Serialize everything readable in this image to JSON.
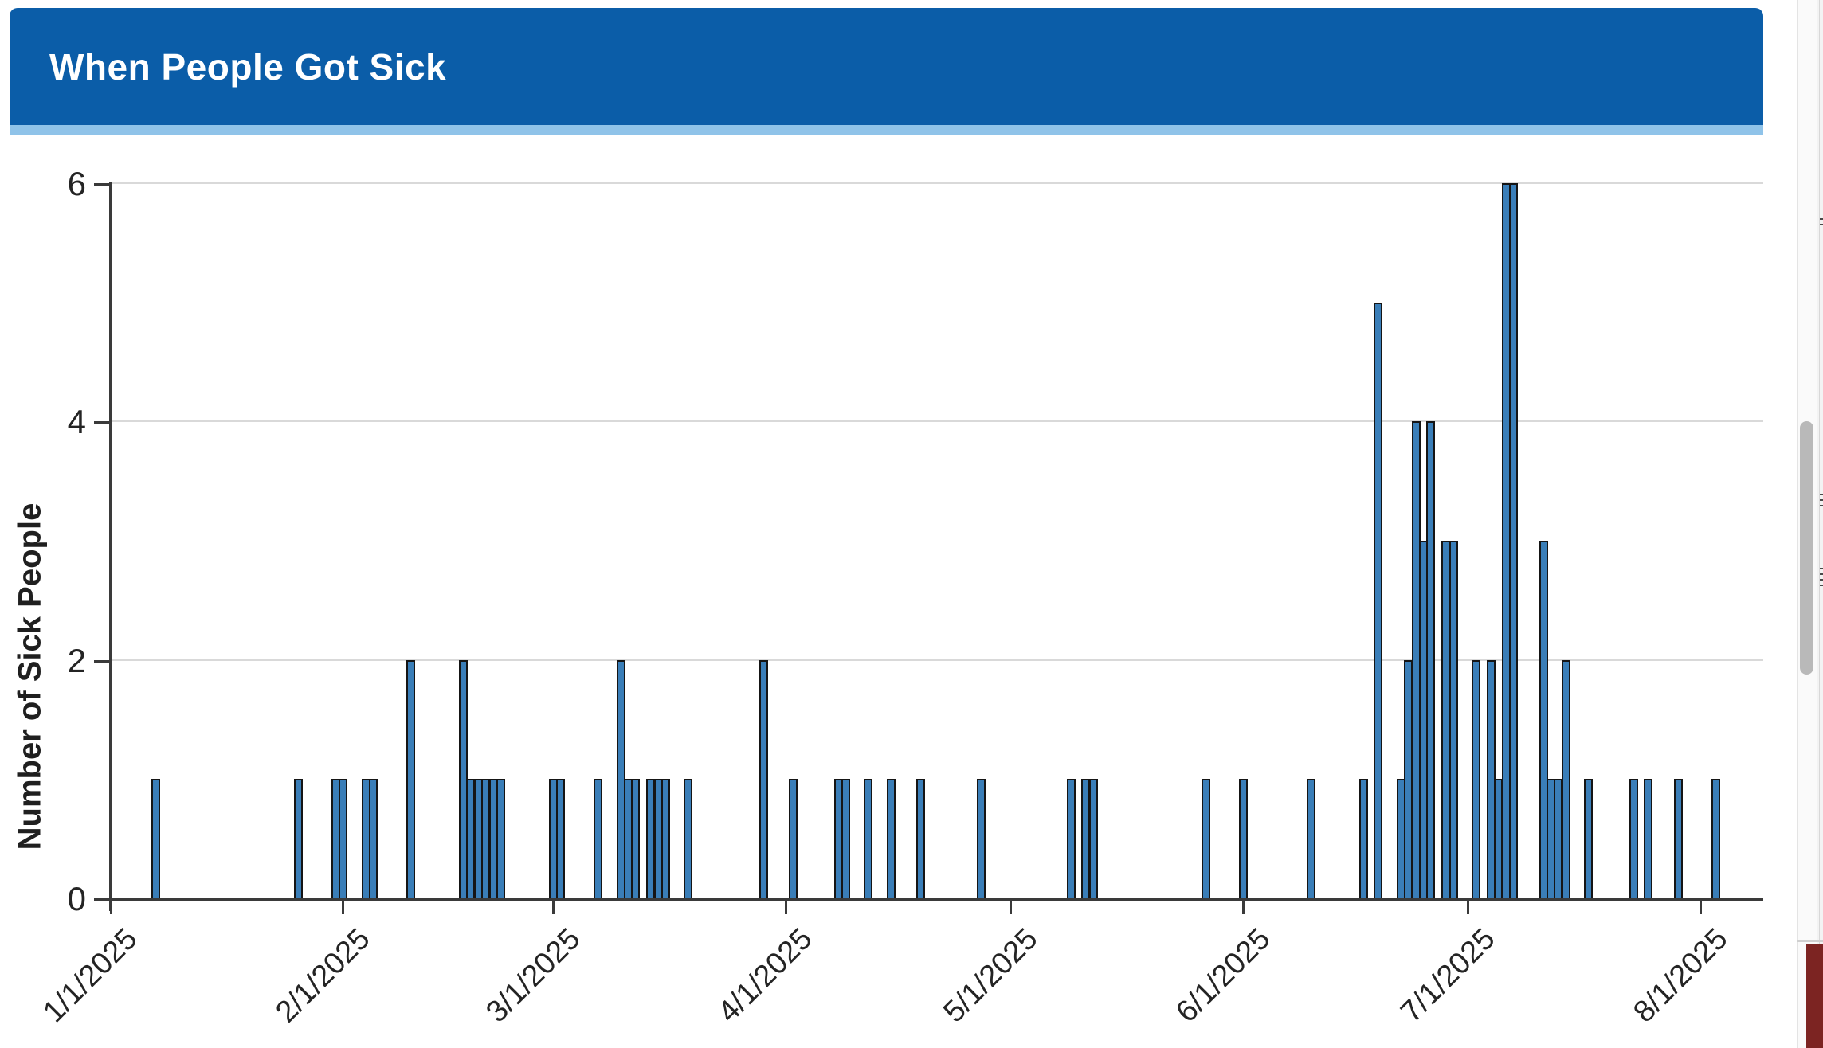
{
  "header": {
    "title": "When People Got Sick"
  },
  "chart_data": {
    "type": "bar",
    "title": "When People Got Sick",
    "xlabel": "",
    "ylabel": "Number of Sick People",
    "ylim": [
      0,
      6
    ],
    "grid": "horizontal",
    "legend": "none",
    "y_ticks": [
      0,
      2,
      4,
      6
    ],
    "y_gridlines": [
      2,
      4,
      6
    ],
    "x_ticks": [
      {
        "label": "1/1/2025",
        "day": 0
      },
      {
        "label": "2/1/2025",
        "day": 31
      },
      {
        "label": "3/1/2025",
        "day": 59
      },
      {
        "label": "4/1/2025",
        "day": 90
      },
      {
        "label": "5/1/2025",
        "day": 120
      },
      {
        "label": "6/1/2025",
        "day": 151
      },
      {
        "label": "7/1/2025",
        "day": 181
      },
      {
        "label": "8/1/2025",
        "day": 212
      }
    ],
    "points": [
      {
        "date": "1/7/2025",
        "day": 6,
        "count": 1
      },
      {
        "date": "1/26/2025",
        "day": 25,
        "count": 1
      },
      {
        "date": "1/31/2025",
        "day": 30,
        "count": 1
      },
      {
        "date": "2/1/2025",
        "day": 31,
        "count": 1
      },
      {
        "date": "2/4/2025",
        "day": 34,
        "count": 1
      },
      {
        "date": "2/5/2025",
        "day": 35,
        "count": 1
      },
      {
        "date": "2/10/2025",
        "day": 40,
        "count": 2
      },
      {
        "date": "2/17/2025",
        "day": 47,
        "count": 2
      },
      {
        "date": "2/18/2025",
        "day": 48,
        "count": 1
      },
      {
        "date": "2/19/2025",
        "day": 49,
        "count": 1
      },
      {
        "date": "2/20/2025",
        "day": 50,
        "count": 1
      },
      {
        "date": "2/21/2025",
        "day": 51,
        "count": 1
      },
      {
        "date": "2/22/2025",
        "day": 52,
        "count": 1
      },
      {
        "date": "3/1/2025",
        "day": 59,
        "count": 1
      },
      {
        "date": "3/2/2025",
        "day": 60,
        "count": 1
      },
      {
        "date": "3/7/2025",
        "day": 65,
        "count": 1
      },
      {
        "date": "3/10/2025",
        "day": 68,
        "count": 2
      },
      {
        "date": "3/11/2025",
        "day": 69,
        "count": 1
      },
      {
        "date": "3/12/2025",
        "day": 70,
        "count": 1
      },
      {
        "date": "3/14/2025",
        "day": 72,
        "count": 1
      },
      {
        "date": "3/15/2025",
        "day": 73,
        "count": 1
      },
      {
        "date": "3/16/2025",
        "day": 74,
        "count": 1
      },
      {
        "date": "3/19/2025",
        "day": 77,
        "count": 1
      },
      {
        "date": "3/29/2025",
        "day": 87,
        "count": 2
      },
      {
        "date": "4/2/2025",
        "day": 91,
        "count": 1
      },
      {
        "date": "4/8/2025",
        "day": 97,
        "count": 1
      },
      {
        "date": "4/9/2025",
        "day": 98,
        "count": 1
      },
      {
        "date": "4/12/2025",
        "day": 101,
        "count": 1
      },
      {
        "date": "4/15/2025",
        "day": 104,
        "count": 1
      },
      {
        "date": "4/19/2025",
        "day": 108,
        "count": 1
      },
      {
        "date": "4/27/2025",
        "day": 116,
        "count": 1
      },
      {
        "date": "5/9/2025",
        "day": 128,
        "count": 1
      },
      {
        "date": "5/11/2025",
        "day": 130,
        "count": 1
      },
      {
        "date": "5/12/2025",
        "day": 131,
        "count": 1
      },
      {
        "date": "5/27/2025",
        "day": 146,
        "count": 1
      },
      {
        "date": "6/1/2025",
        "day": 151,
        "count": 1
      },
      {
        "date": "6/10/2025",
        "day": 160,
        "count": 1
      },
      {
        "date": "6/17/2025",
        "day": 167,
        "count": 1
      },
      {
        "date": "6/19/2025",
        "day": 169,
        "count": 5
      },
      {
        "date": "6/22/2025",
        "day": 172,
        "count": 1
      },
      {
        "date": "6/23/2025",
        "day": 173,
        "count": 2
      },
      {
        "date": "6/24/2025",
        "day": 174,
        "count": 4
      },
      {
        "date": "6/25/2025",
        "day": 175,
        "count": 3
      },
      {
        "date": "6/26/2025",
        "day": 176,
        "count": 4
      },
      {
        "date": "6/28/2025",
        "day": 178,
        "count": 3
      },
      {
        "date": "6/29/2025",
        "day": 179,
        "count": 3
      },
      {
        "date": "7/2/2025",
        "day": 182,
        "count": 2
      },
      {
        "date": "7/4/2025",
        "day": 184,
        "count": 2
      },
      {
        "date": "7/5/2025",
        "day": 185,
        "count": 1
      },
      {
        "date": "7/6/2025",
        "day": 186,
        "count": 6
      },
      {
        "date": "7/7/2025",
        "day": 187,
        "count": 6
      },
      {
        "date": "7/11/2025",
        "day": 191,
        "count": 3
      },
      {
        "date": "7/12/2025",
        "day": 192,
        "count": 1
      },
      {
        "date": "7/13/2025",
        "day": 193,
        "count": 1
      },
      {
        "date": "7/14/2025",
        "day": 194,
        "count": 2
      },
      {
        "date": "7/17/2025",
        "day": 197,
        "count": 1
      },
      {
        "date": "7/23/2025",
        "day": 203,
        "count": 1
      },
      {
        "date": "7/25/2025",
        "day": 205,
        "count": 1
      },
      {
        "date": "7/29/2025",
        "day": 209,
        "count": 1
      },
      {
        "date": "8/3/2025",
        "day": 214,
        "count": 1
      }
    ]
  },
  "colors": {
    "header_bg": "#0b5da8",
    "header_accent": "#8fc3e9",
    "bar_fill": "#3a7eb8",
    "bar_border": "#151515",
    "gridline": "#d9d9d9",
    "axis": "#3a3a3a",
    "tick_label": "#242424",
    "scrollbar_thumb": "#b9b9b9",
    "clipped_block_red": "#7c2422"
  }
}
